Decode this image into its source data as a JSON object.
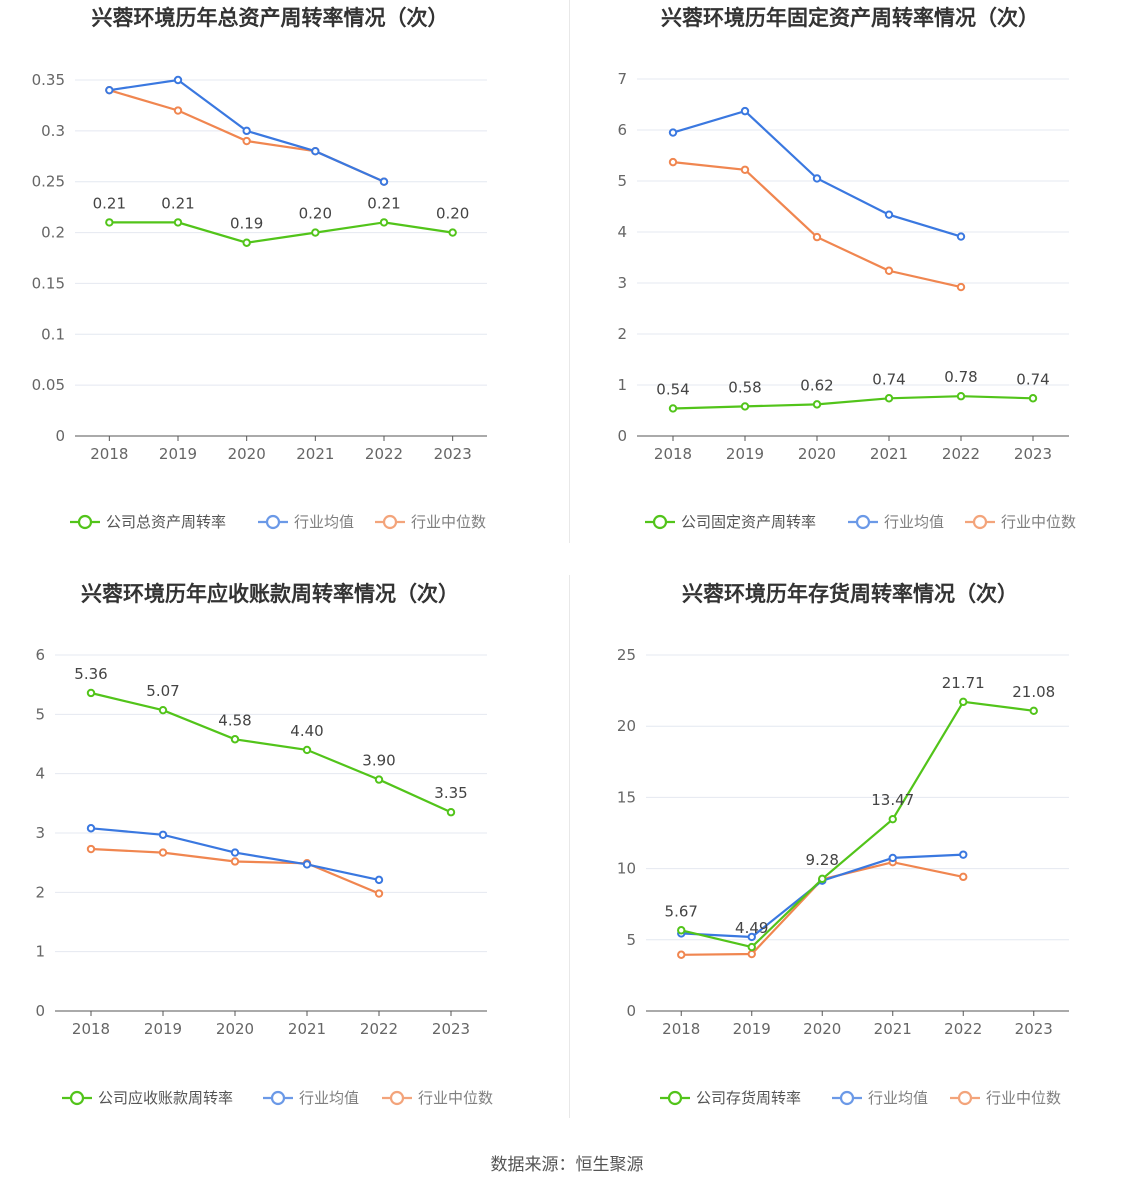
{
  "source": "数据来源：恒生聚源",
  "colors": {
    "company": "#52c41a",
    "average": "#3a78e0",
    "median": "#f08650",
    "grid": "#e4e8f0",
    "axis": "#666666"
  },
  "chart_data": [
    {
      "type": "line",
      "title": "兴蓉环境历年总资产周转率情况（次）",
      "x": [
        "2018",
        "2019",
        "2020",
        "2021",
        "2022",
        "2023"
      ],
      "ylim": [
        0,
        0.35
      ],
      "yticks": [
        "0",
        "0.05",
        "0.1",
        "0.15",
        "0.2",
        "0.25",
        "0.3",
        "0.35"
      ],
      "series": [
        {
          "name": "公司总资产周转率",
          "role": "company",
          "values": [
            0.21,
            0.21,
            0.19,
            0.2,
            0.21,
            0.2
          ],
          "labels": [
            "0.21",
            "0.21",
            "0.19",
            "0.20",
            "0.21",
            "0.20"
          ]
        },
        {
          "name": "行业均值",
          "role": "average",
          "values": [
            0.34,
            0.35,
            0.3,
            0.28,
            0.25,
            null
          ]
        },
        {
          "name": "行业中位数",
          "role": "median",
          "values": [
            0.34,
            0.32,
            0.29,
            0.28,
            0.25,
            null
          ]
        }
      ],
      "legend": "bottom",
      "grid": true
    },
    {
      "type": "line",
      "title": "兴蓉环境历年固定资产周转率情况（次）",
      "x": [
        "2018",
        "2019",
        "2020",
        "2021",
        "2022",
        "2023"
      ],
      "ylim": [
        0,
        7
      ],
      "yticks": [
        "0",
        "1",
        "2",
        "3",
        "4",
        "5",
        "6",
        "7"
      ],
      "series": [
        {
          "name": "公司固定资产周转率",
          "role": "company",
          "values": [
            0.54,
            0.58,
            0.62,
            0.74,
            0.78,
            0.74
          ],
          "labels": [
            "0.54",
            "0.58",
            "0.62",
            "0.74",
            "0.78",
            "0.74"
          ]
        },
        {
          "name": "行业均值",
          "role": "average",
          "values": [
            5.95,
            6.37,
            5.05,
            4.34,
            3.91,
            null
          ]
        },
        {
          "name": "行业中位数",
          "role": "median",
          "values": [
            5.37,
            5.22,
            3.9,
            3.24,
            2.92,
            null
          ]
        }
      ],
      "legend": "bottom",
      "grid": true
    },
    {
      "type": "line",
      "title": "兴蓉环境历年应收账款周转率情况（次）",
      "x": [
        "2018",
        "2019",
        "2020",
        "2021",
        "2022",
        "2023"
      ],
      "ylim": [
        0,
        6
      ],
      "yticks": [
        "0",
        "1",
        "2",
        "3",
        "4",
        "5",
        "6"
      ],
      "series": [
        {
          "name": "公司应收账款周转率",
          "role": "company",
          "values": [
            5.36,
            5.07,
            4.58,
            4.4,
            3.9,
            3.35
          ],
          "labels": [
            "5.36",
            "5.07",
            "4.58",
            "4.40",
            "3.90",
            "3.35"
          ]
        },
        {
          "name": "行业均值",
          "role": "average",
          "values": [
            3.08,
            2.97,
            2.67,
            2.47,
            2.21,
            null
          ]
        },
        {
          "name": "行业中位数",
          "role": "median",
          "values": [
            2.73,
            2.67,
            2.52,
            2.49,
            1.98,
            null
          ]
        }
      ],
      "legend": "bottom",
      "grid": true
    },
    {
      "type": "line",
      "title": "兴蓉环境历年存货周转率情况（次）",
      "x": [
        "2018",
        "2019",
        "2020",
        "2021",
        "2022",
        "2023"
      ],
      "ylim": [
        0,
        25
      ],
      "yticks": [
        "0",
        "5",
        "10",
        "15",
        "20",
        "25"
      ],
      "series": [
        {
          "name": "公司存货周转率",
          "role": "company",
          "values": [
            5.67,
            4.49,
            9.28,
            13.47,
            21.71,
            21.08
          ],
          "labels": [
            "5.67",
            "4.49",
            "9.28",
            "13.47",
            "21.71",
            "21.08"
          ]
        },
        {
          "name": "行业均值",
          "role": "average",
          "values": [
            5.45,
            5.2,
            9.15,
            10.75,
            10.98,
            null
          ]
        },
        {
          "name": "行业中位数",
          "role": "median",
          "values": [
            3.95,
            4.0,
            9.25,
            10.45,
            9.42,
            null
          ]
        }
      ],
      "legend": "bottom",
      "grid": true
    }
  ]
}
